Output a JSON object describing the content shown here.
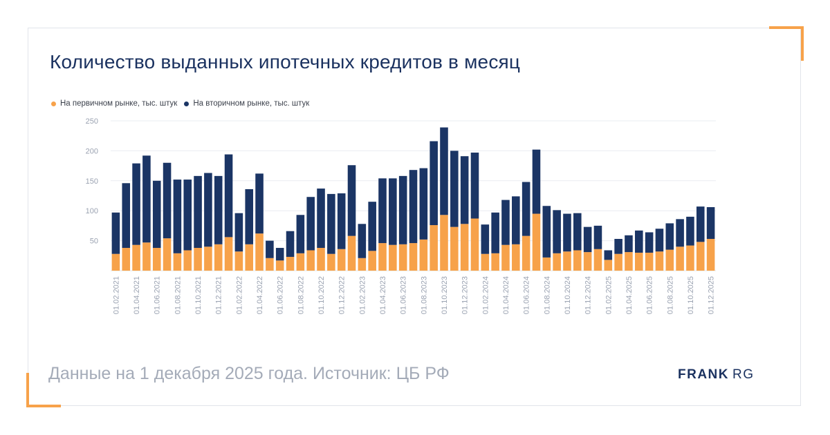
{
  "title": "Количество выданных ипотечных кредитов в месяц",
  "footer": "Данные на 1 декабря 2025 года. Источник: ЦБ РФ",
  "logo": {
    "bold": "FRANK",
    "normal": "RG"
  },
  "colors": {
    "primary": "#f7a24a",
    "secondary": "#1b3565",
    "accent": "#f7a24a"
  },
  "chart_data": {
    "type": "bar",
    "stacked": true,
    "title": "Количество выданных ипотечных кредитов в месяц",
    "legend_position": "top-left",
    "grid": true,
    "ylim": [
      0,
      250
    ],
    "yticks": [
      50,
      100,
      150,
      200,
      250
    ],
    "categories": [
      "01.02.2021",
      "01.03.2021",
      "01.04.2021",
      "01.05.2021",
      "01.06.2021",
      "01.07.2021",
      "01.08.2021",
      "01.09.2021",
      "01.10.2021",
      "01.11.2021",
      "01.12.2021",
      "01.01.2022",
      "01.02.2022",
      "01.03.2022",
      "01.04.2022",
      "01.05.2022",
      "01.06.2022",
      "01.07.2022",
      "01.08.2022",
      "01.09.2022",
      "01.10.2022",
      "01.11.2022",
      "01.12.2022",
      "01.01.2023",
      "01.02.2023",
      "01.03.2023",
      "01.04.2023",
      "01.05.2023",
      "01.06.2023",
      "01.07.2023",
      "01.08.2023",
      "01.09.2023",
      "01.10.2023",
      "01.11.2023",
      "01.12.2023",
      "01.01.2024",
      "01.02.2024",
      "01.03.2024",
      "01.04.2024",
      "01.05.2024",
      "01.06.2024",
      "01.07.2024",
      "01.08.2024",
      "01.09.2024",
      "01.10.2024",
      "01.11.2024",
      "01.12.2024",
      "01.01.2025",
      "01.02.2025",
      "01.03.2025",
      "01.04.2025",
      "01.05.2025",
      "01.06.2025",
      "01.07.2025",
      "01.08.2025",
      "01.09.2025",
      "01.10.2025",
      "01.11.2025",
      "01.12.2025"
    ],
    "xtick_labels": [
      "01.02.2021",
      "01.04.2021",
      "01.06.2021",
      "01.08.2021",
      "01.10.2021",
      "01.12.2021",
      "01.02.2022",
      "01.04.2022",
      "01.06.2022",
      "01.08.2022",
      "01.10.2022",
      "01.12.2022",
      "01.02.2023",
      "01.04.2023",
      "01.06.2023",
      "01.08.2023",
      "01.10.2023",
      "01.12.2023",
      "01.02.2024",
      "01.04.2024",
      "01.06.2024",
      "01.08.2024",
      "01.10.2024",
      "01.12.2024",
      "01.02.2025",
      "01.04.2025",
      "01.06.2025",
      "01.08.2025",
      "01.10.2025",
      "01.12.2025"
    ],
    "series": [
      {
        "name": "На первичном рынке, тыс. штук",
        "color": "#f7a24a",
        "values": [
          28,
          38,
          43,
          47,
          38,
          54,
          29,
          34,
          38,
          40,
          44,
          56,
          32,
          44,
          62,
          21,
          17,
          23,
          29,
          34,
          38,
          28,
          36,
          58,
          21,
          33,
          46,
          43,
          44,
          46,
          52,
          76,
          93,
          73,
          78,
          87,
          28,
          29,
          43,
          44,
          58,
          95,
          22,
          29,
          32,
          34,
          31,
          36,
          18,
          28,
          31,
          30,
          30,
          32,
          35,
          40,
          42,
          48,
          53
        ]
      },
      {
        "name": "На вторичном рынке, тыс. штук",
        "color": "#1b3565",
        "values": [
          69,
          108,
          136,
          145,
          112,
          126,
          123,
          118,
          120,
          123,
          114,
          138,
          64,
          92,
          100,
          29,
          21,
          43,
          64,
          89,
          99,
          100,
          93,
          118,
          57,
          82,
          108,
          111,
          114,
          122,
          119,
          140,
          146,
          127,
          113,
          110,
          49,
          68,
          75,
          80,
          90,
          107,
          86,
          72,
          63,
          62,
          42,
          39,
          16,
          25,
          28,
          37,
          34,
          38,
          44,
          46,
          48,
          59,
          53
        ]
      }
    ]
  }
}
